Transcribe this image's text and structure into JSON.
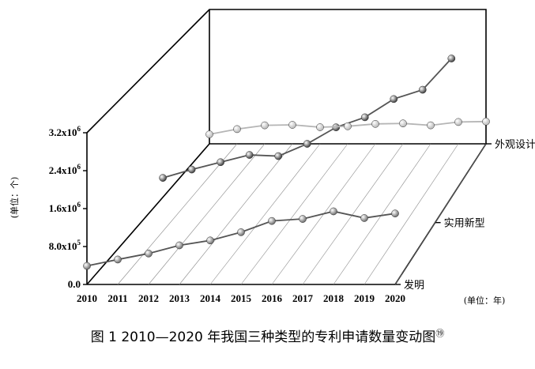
{
  "chart_data": {
    "type": "line",
    "categories": [
      "2010",
      "2011",
      "2012",
      "2013",
      "2014",
      "2015",
      "2016",
      "2017",
      "2018",
      "2019",
      "2020"
    ],
    "y_ticks": [
      {
        "value": 0,
        "label": "0.0"
      },
      {
        "value": 800000,
        "label": "8.0x10",
        "exp": "5"
      },
      {
        "value": 1600000,
        "label": "1.6x10",
        "exp": "6"
      },
      {
        "value": 2400000,
        "label": "2.4x10",
        "exp": "6"
      },
      {
        "value": 3200000,
        "label": "3.2x10",
        "exp": "6"
      }
    ],
    "ylim": [
      0,
      3200000
    ],
    "ylabel": "(单位：个)",
    "xunit": "(单位：年)",
    "series": [
      {
        "name": "发明",
        "color": "#555555",
        "marker": "#6e6e6e",
        "values": [
          391000,
          526000,
          653000,
          825000,
          928000,
          1102000,
          1339000,
          1382000,
          1542000,
          1401000,
          1497000
        ]
      },
      {
        "name": "实用新型",
        "color": "#555555",
        "marker": "#3f3f3f",
        "values": [
          409000,
          585000,
          740000,
          893000,
          868000,
          1127000,
          1475000,
          1687000,
          2072000,
          2268000,
          2927000
        ]
      },
      {
        "name": "外观设计",
        "color": "#b5b5b5",
        "marker": "#b8b8b8",
        "values": [
          200000,
          310000,
          390000,
          400000,
          350000,
          370000,
          420000,
          430000,
          390000,
          460000,
          470000
        ]
      }
    ]
  },
  "caption": {
    "text": "图 1   2010—2020 年我国三种类型的专利申请数量变动图",
    "note": "⑲"
  }
}
